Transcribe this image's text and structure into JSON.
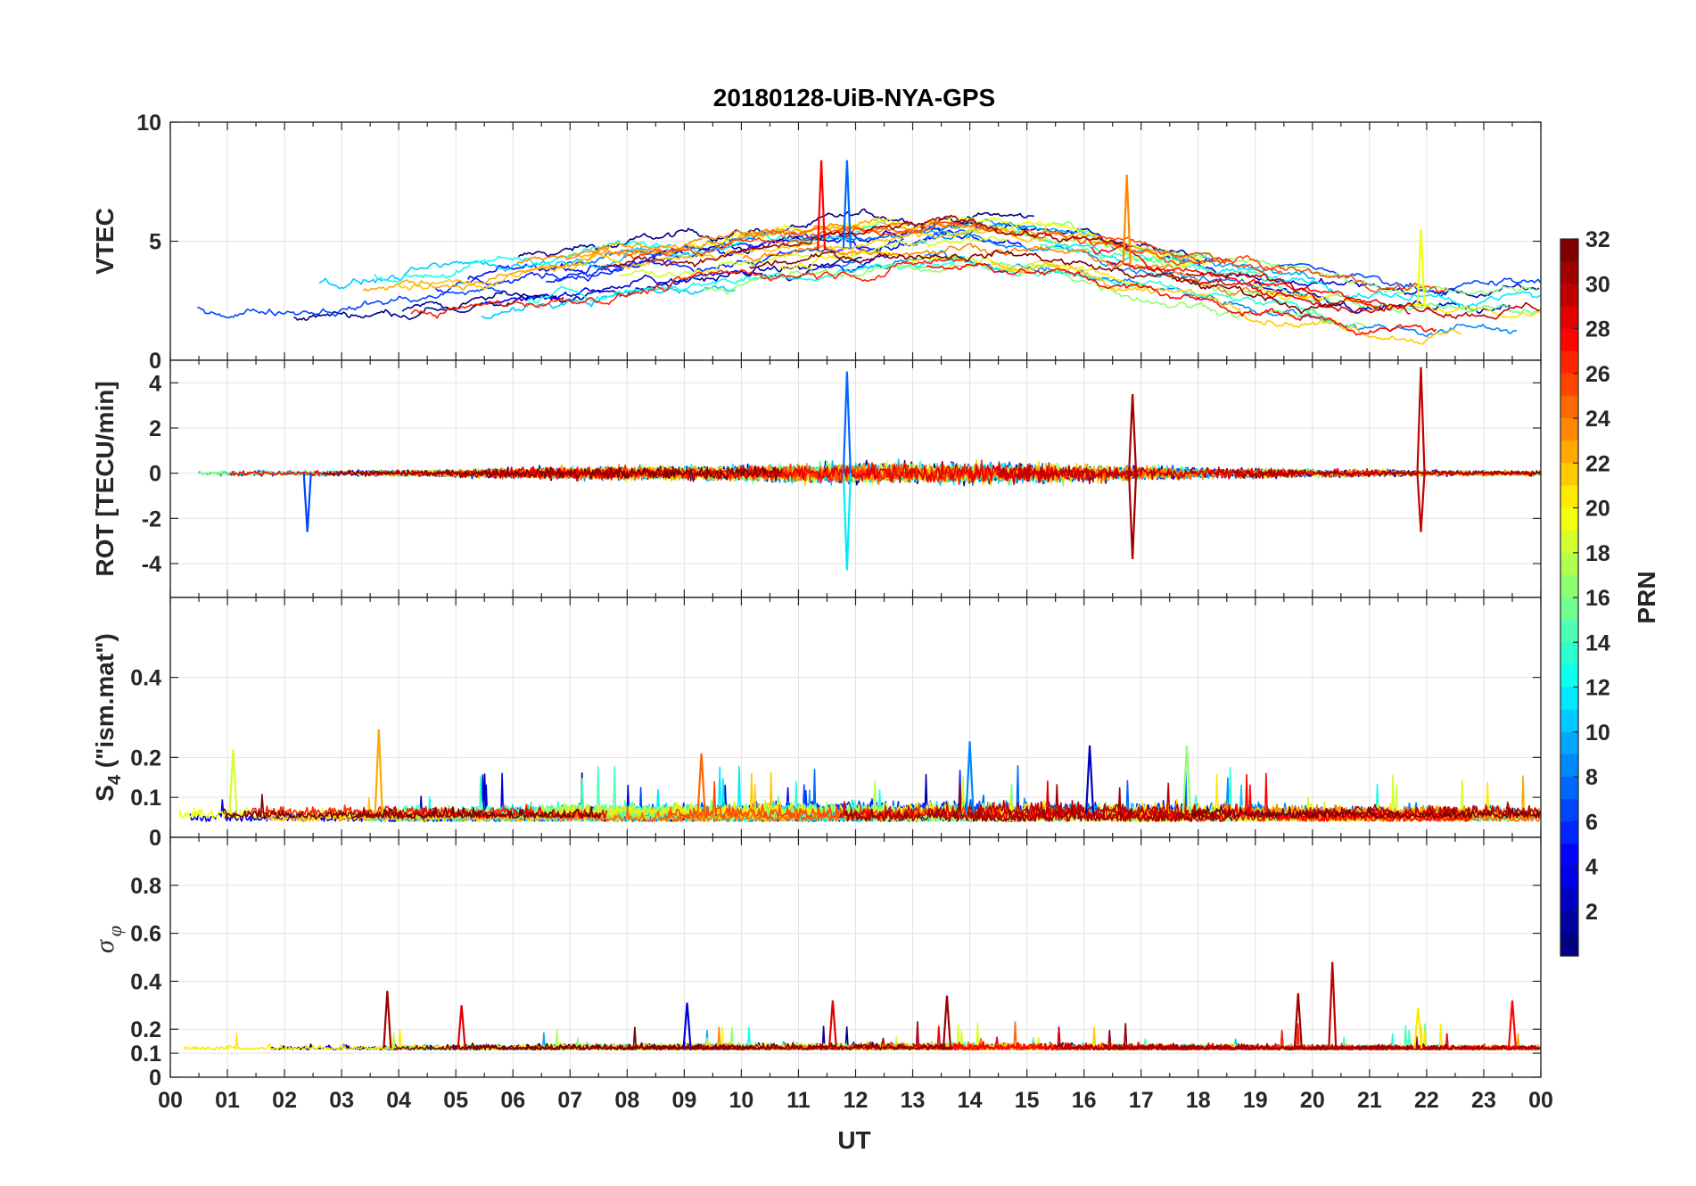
{
  "chart_data": {
    "type": "line",
    "title": "20180128-UiB-NYA-GPS",
    "xlabel": "UT",
    "x_tick_labels": [
      "00",
      "01",
      "02",
      "03",
      "04",
      "05",
      "06",
      "07",
      "08",
      "09",
      "10",
      "11",
      "12",
      "13",
      "14",
      "15",
      "16",
      "17",
      "18",
      "19",
      "20",
      "21",
      "22",
      "23",
      "00"
    ],
    "xlim_hours": [
      0,
      24
    ],
    "colorbar": {
      "label": "PRN",
      "range": [
        1,
        32
      ],
      "tick_labels": [
        "2",
        "4",
        "6",
        "8",
        "10",
        "12",
        "14",
        "16",
        "18",
        "20",
        "22",
        "24",
        "26",
        "28",
        "30",
        "32"
      ],
      "tick_values": [
        2,
        4,
        6,
        8,
        10,
        12,
        14,
        16,
        18,
        20,
        22,
        24,
        26,
        28,
        30,
        32
      ]
    },
    "panels": [
      {
        "id": "vtec",
        "ylabel": "VTEC",
        "ylim": [
          0,
          10
        ],
        "y_tick_values": [
          0,
          5,
          10
        ],
        "y_tick_labels": [
          "0",
          "5",
          "10"
        ],
        "series_summary": "VTEC per PRN, ~1.5-3 TECU at 00-04 UT, rising to 3-6 TECU during 06-18 UT with peaks near 8.4 TECU around 11.5-12 UT, decreasing to ~1-3 TECU after 20 UT",
        "notable_peaks": [
          {
            "x": 11.85,
            "y": 8.4,
            "prn": 8
          },
          {
            "x": 11.4,
            "y": 8.4,
            "prn": 28
          },
          {
            "x": 16.75,
            "y": 7.8,
            "prn": 24
          },
          {
            "x": 21.9,
            "y": 5.5,
            "prn": 20
          }
        ]
      },
      {
        "id": "rot",
        "ylabel": "ROT [TECU/min]",
        "ylim": [
          -5.5,
          5
        ],
        "y_tick_values": [
          -4,
          -2,
          0,
          2,
          4
        ],
        "y_tick_labels": [
          "-4",
          "-2",
          "0",
          "2",
          "4"
        ],
        "series_summary": "Rate of TEC, mostly within ±1 TECU/min, enhanced fluctuations 11-18 UT",
        "notable_peaks": [
          {
            "x": 11.85,
            "y": 4.5,
            "prn": 8
          },
          {
            "x": 11.85,
            "y": -4.3,
            "prn": 12
          },
          {
            "x": 21.9,
            "y": 4.7,
            "prn": 30
          },
          {
            "x": 21.9,
            "y": -2.6,
            "prn": 30
          },
          {
            "x": 16.85,
            "y": 3.5,
            "prn": 31
          },
          {
            "x": 16.85,
            "y": -3.8,
            "prn": 31
          },
          {
            "x": 2.4,
            "y": -2.6,
            "prn": 7
          }
        ]
      },
      {
        "id": "s4",
        "ylabel": "S4 (\"ism.mat\")",
        "ylabel_main": "S",
        "ylabel_sub": "4",
        "ylabel_rest": " (\"ism.mat\")",
        "ylim": [
          0,
          0.6
        ],
        "y_tick_values": [
          0,
          0.1,
          0.2,
          0.4
        ],
        "y_tick_labels": [
          "0",
          "0.1",
          "0.2",
          "0.4"
        ],
        "series_summary": "Amplitude scintillation index, background 0.03-0.1, occasional spikes to ~0.2",
        "notable_peaks": [
          {
            "x": 3.65,
            "y": 0.27,
            "prn": 23
          },
          {
            "x": 14.0,
            "y": 0.24,
            "prn": 9
          },
          {
            "x": 16.1,
            "y": 0.23,
            "prn": 3
          },
          {
            "x": 1.1,
            "y": 0.22,
            "prn": 19
          },
          {
            "x": 17.8,
            "y": 0.23,
            "prn": 17
          },
          {
            "x": 9.3,
            "y": 0.21,
            "prn": 25
          }
        ]
      },
      {
        "id": "sigma_phi",
        "ylabel": "σφ",
        "ylabel_main": "σ",
        "ylabel_sub": "φ",
        "ylim": [
          0,
          1
        ],
        "y_tick_values": [
          0,
          0.1,
          0.2,
          0.4,
          0.6,
          0.8
        ],
        "y_tick_labels": [
          "0",
          "0.1",
          "0.2",
          "0.4",
          "0.6",
          "0.8"
        ],
        "series_summary": "Phase scintillation index, background ~0.1-0.15, spikes up to ~0.48",
        "notable_peaks": [
          {
            "x": 20.35,
            "y": 0.48,
            "prn": 30
          },
          {
            "x": 3.8,
            "y": 0.36,
            "prn": 31
          },
          {
            "x": 13.6,
            "y": 0.34,
            "prn": 31
          },
          {
            "x": 19.75,
            "y": 0.35,
            "prn": 31
          },
          {
            "x": 23.5,
            "y": 0.32,
            "prn": 28
          },
          {
            "x": 11.6,
            "y": 0.32,
            "prn": 29
          },
          {
            "x": 9.05,
            "y": 0.31,
            "prn": 4
          },
          {
            "x": 5.1,
            "y": 0.3,
            "prn": 29
          },
          {
            "x": 21.85,
            "y": 0.29,
            "prn": 21
          }
        ]
      }
    ]
  }
}
